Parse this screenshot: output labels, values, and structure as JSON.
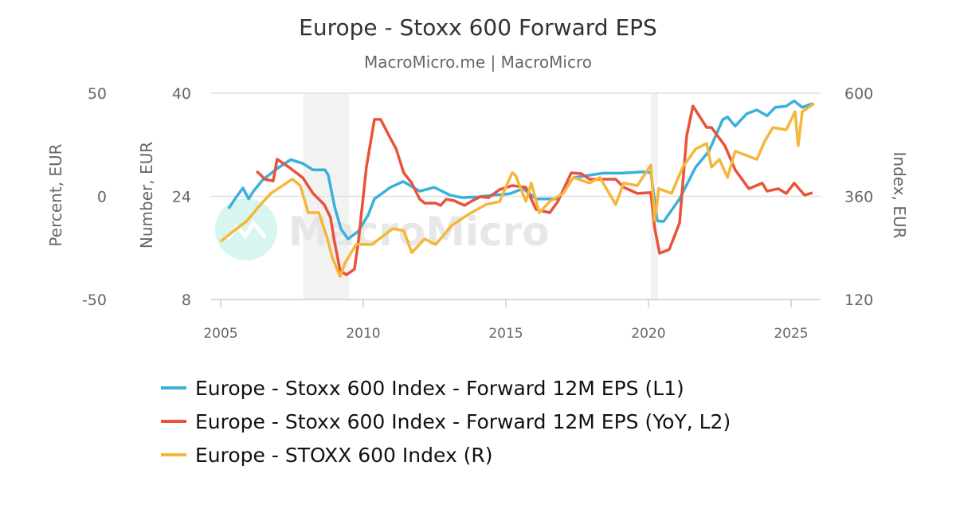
{
  "chart_data": {
    "type": "line",
    "title": "Europe - Stoxx 600 Forward EPS",
    "subtitle": "MacroMicro.me | MacroMicro",
    "watermark": "MacroMicro",
    "x_ticks": [
      "2005",
      "2010",
      "2015",
      "2020",
      "2025"
    ],
    "xlim": [
      2005,
      2026
    ],
    "axes": {
      "left1": {
        "label": "Number, EUR",
        "ylim": [
          8,
          40
        ],
        "ticks": [
          "8",
          "24",
          "40"
        ]
      },
      "left2": {
        "label": "Percent, EUR",
        "ylim": [
          -50,
          50
        ],
        "ticks": [
          "-50",
          "0",
          "50"
        ]
      },
      "right": {
        "label": "Index, EUR",
        "ylim": [
          120,
          600
        ],
        "ticks": [
          "120",
          "360",
          "600"
        ]
      }
    },
    "grid": true,
    "legend_position": "bottom",
    "shaded_periods": [
      [
        2007.9,
        2009.5
      ],
      [
        2020.08,
        2020.33
      ]
    ],
    "series": [
      {
        "name": "Europe - Stoxx 600 Index - Forward 12M EPS (L1)",
        "axis": "left1",
        "color": "#3ab0dc",
        "points": [
          [
            2005.28,
            22.1
          ],
          [
            2005.5,
            23.6
          ],
          [
            2005.78,
            25.3
          ],
          [
            2005.98,
            23.6
          ],
          [
            2006.15,
            24.8
          ],
          [
            2006.48,
            26.6
          ],
          [
            2007.04,
            28.5
          ],
          [
            2007.46,
            29.7
          ],
          [
            2007.88,
            29.1
          ],
          [
            2008.24,
            28.1
          ],
          [
            2008.66,
            28.1
          ],
          [
            2008.77,
            27.3
          ],
          [
            2009.0,
            22.3
          ],
          [
            2009.22,
            18.9
          ],
          [
            2009.47,
            17.4
          ],
          [
            2009.83,
            18.6
          ],
          [
            2010.17,
            21.1
          ],
          [
            2010.39,
            23.6
          ],
          [
            2010.67,
            24.5
          ],
          [
            2010.95,
            25.4
          ],
          [
            2011.4,
            26.3
          ],
          [
            2011.98,
            24.8
          ],
          [
            2012.49,
            25.4
          ],
          [
            2013.04,
            24.2
          ],
          [
            2013.46,
            23.8
          ],
          [
            2014.02,
            23.9
          ],
          [
            2014.58,
            24.2
          ],
          [
            2015.14,
            24.4
          ],
          [
            2015.6,
            25.2
          ],
          [
            2016.06,
            23.6
          ],
          [
            2016.82,
            23.6
          ],
          [
            2017.37,
            26.9
          ],
          [
            2018.41,
            27.6
          ],
          [
            2019.05,
            27.6
          ],
          [
            2019.8,
            27.8
          ],
          [
            2020.08,
            27.7
          ],
          [
            2020.31,
            20.2
          ],
          [
            2020.53,
            20.1
          ],
          [
            2021.09,
            23.6
          ],
          [
            2021.65,
            28.5
          ],
          [
            2022.12,
            31
          ],
          [
            2022.6,
            35.9
          ],
          [
            2022.77,
            36.3
          ],
          [
            2023.04,
            34.9
          ],
          [
            2023.44,
            36.8
          ],
          [
            2023.8,
            37.4
          ],
          [
            2024.16,
            36.5
          ],
          [
            2024.44,
            37.8
          ],
          [
            2024.83,
            38
          ],
          [
            2025.11,
            38.8
          ],
          [
            2025.39,
            37.8
          ],
          [
            2025.75,
            38.4
          ]
        ]
      },
      {
        "name": "Europe - Stoxx 600 Index - Forward 12M EPS (YoY, L2)",
        "axis": "left2",
        "color": "#e8533a",
        "points": [
          [
            2006.26,
            12.2
          ],
          [
            2006.42,
            10.2
          ],
          [
            2006.54,
            8.3
          ],
          [
            2006.84,
            7.5
          ],
          [
            2006.98,
            18
          ],
          [
            2007.4,
            14.1
          ],
          [
            2007.88,
            9
          ],
          [
            2008.24,
            1.4
          ],
          [
            2008.63,
            -4
          ],
          [
            2008.85,
            -10.2
          ],
          [
            2008.99,
            -21.8
          ],
          [
            2009.19,
            -36.1
          ],
          [
            2009.41,
            -38
          ],
          [
            2009.69,
            -35.3
          ],
          [
            2009.83,
            -21.8
          ],
          [
            2010.11,
            14.1
          ],
          [
            2010.39,
            37.3
          ],
          [
            2010.61,
            37.3
          ],
          [
            2010.87,
            30.3
          ],
          [
            2011.15,
            23
          ],
          [
            2011.42,
            11.4
          ],
          [
            2011.7,
            6.4
          ],
          [
            2011.98,
            -1.4
          ],
          [
            2012.15,
            -3.3
          ],
          [
            2012.54,
            -3.3
          ],
          [
            2012.71,
            -4.4
          ],
          [
            2012.91,
            -1.4
          ],
          [
            2013.18,
            -2.1
          ],
          [
            2013.55,
            -4.4
          ],
          [
            2013.83,
            -2.1
          ],
          [
            2014.11,
            -0.2
          ],
          [
            2014.39,
            -0.6
          ],
          [
            2014.78,
            3.3
          ],
          [
            2015.22,
            5.2
          ],
          [
            2015.7,
            4.4
          ],
          [
            2016.06,
            -6.4
          ],
          [
            2016.54,
            -7.9
          ],
          [
            2016.82,
            -2.5
          ],
          [
            2017.29,
            11.4
          ],
          [
            2017.65,
            11
          ],
          [
            2017.93,
            8.3
          ],
          [
            2018.85,
            8.3
          ],
          [
            2019.13,
            4.4
          ],
          [
            2019.61,
            1.4
          ],
          [
            2020.08,
            1.8
          ],
          [
            2020.22,
            -15.6
          ],
          [
            2020.39,
            -27.6
          ],
          [
            2020.73,
            -25.7
          ],
          [
            2021.09,
            -12.9
          ],
          [
            2021.34,
            29.5
          ],
          [
            2021.56,
            43.8
          ],
          [
            2022.04,
            33.4
          ],
          [
            2022.21,
            33.4
          ],
          [
            2022.68,
            24.5
          ],
          [
            2023.04,
            12.9
          ],
          [
            2023.52,
            3.7
          ],
          [
            2023.99,
            6.4
          ],
          [
            2024.16,
            2.5
          ],
          [
            2024.55,
            3.7
          ],
          [
            2024.83,
            1.4
          ],
          [
            2025.11,
            6.4
          ],
          [
            2025.47,
            0.6
          ],
          [
            2025.75,
            1.7
          ]
        ]
      },
      {
        "name": "Europe - STOXX 600 Index (R)",
        "axis": "right",
        "color": "#f5b63a",
        "points": [
          [
            2005.0,
            255
          ],
          [
            2005.45,
            279
          ],
          [
            2005.92,
            303
          ],
          [
            2006.4,
            341
          ],
          [
            2006.76,
            367
          ],
          [
            2007.51,
            400
          ],
          [
            2007.79,
            385
          ],
          [
            2008.07,
            322
          ],
          [
            2008.44,
            322
          ],
          [
            2008.72,
            266
          ],
          [
            2008.91,
            218
          ],
          [
            2009.19,
            174
          ],
          [
            2009.36,
            205
          ],
          [
            2009.75,
            248
          ],
          [
            2010.31,
            248
          ],
          [
            2011.03,
            285
          ],
          [
            2011.42,
            280
          ],
          [
            2011.7,
            229
          ],
          [
            2012.15,
            261
          ],
          [
            2012.54,
            248
          ],
          [
            2013.1,
            292
          ],
          [
            2013.66,
            317
          ],
          [
            2014.3,
            341
          ],
          [
            2014.78,
            348
          ],
          [
            2015.22,
            415
          ],
          [
            2015.34,
            409
          ],
          [
            2015.7,
            348
          ],
          [
            2015.89,
            391
          ],
          [
            2016.17,
            322
          ],
          [
            2016.54,
            348
          ],
          [
            2017.01,
            367
          ],
          [
            2017.37,
            404
          ],
          [
            2017.93,
            391
          ],
          [
            2018.3,
            404
          ],
          [
            2018.85,
            341
          ],
          [
            2019.13,
            391
          ],
          [
            2019.61,
            385
          ],
          [
            2020.08,
            433
          ],
          [
            2020.22,
            304
          ],
          [
            2020.36,
            378
          ],
          [
            2020.81,
            367
          ],
          [
            2021.2,
            428
          ],
          [
            2021.65,
            470
          ],
          [
            2022.04,
            483
          ],
          [
            2022.21,
            428
          ],
          [
            2022.49,
            446
          ],
          [
            2022.77,
            404
          ],
          [
            2023.04,
            465
          ],
          [
            2023.8,
            446
          ],
          [
            2024.08,
            489
          ],
          [
            2024.36,
            520
          ],
          [
            2024.83,
            515
          ],
          [
            2025.14,
            557
          ],
          [
            2025.25,
            478
          ],
          [
            2025.39,
            557
          ],
          [
            2025.81,
            576
          ]
        ]
      }
    ]
  }
}
